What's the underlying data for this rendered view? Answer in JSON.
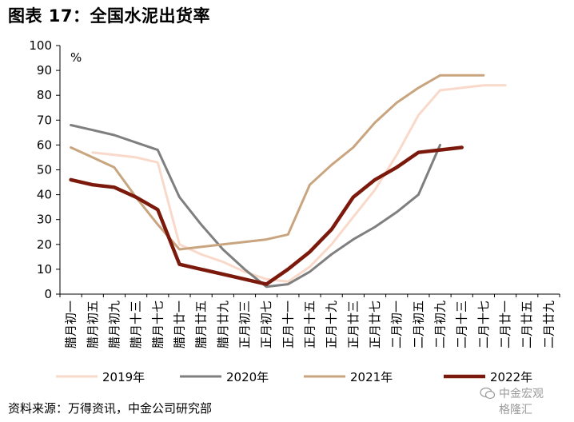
{
  "title": "图表 17：全国水泥出货率",
  "source": "资料来源：万得资讯，中金公司研究部",
  "watermark": {
    "name": "中金宏观",
    "brand": "格隆汇"
  },
  "chart_data": {
    "type": "line",
    "unit": "%",
    "ylim": [
      0,
      100
    ],
    "yticks": [
      0,
      10,
      20,
      30,
      40,
      50,
      60,
      70,
      80,
      90,
      100
    ],
    "categories": [
      "腊月初一",
      "腊月初五",
      "腊月初九",
      "腊月十三",
      "腊月十七",
      "腊月廿一",
      "腊月廿五",
      "腊月廿九",
      "正月初三",
      "正月初七",
      "正月十一",
      "正月十五",
      "正月十九",
      "正月廿三",
      "正月廿七",
      "二月初一",
      "二月初五",
      "二月初九",
      "二月十三",
      "二月十七",
      "二月廿一",
      "二月廿五",
      "二月廿九"
    ],
    "grid": false,
    "legend_position": "bottom",
    "series": [
      {
        "name": "2019年",
        "color": "#f9d9c9",
        "width": 3,
        "values": [
          null,
          57,
          56,
          55,
          53,
          20,
          16,
          13,
          9,
          6,
          5,
          11,
          20,
          31,
          42,
          56,
          72,
          82,
          83,
          84,
          84,
          null,
          null
        ]
      },
      {
        "name": "2020年",
        "color": "#7f7f7f",
        "width": 3,
        "values": [
          68,
          66,
          64,
          61,
          58,
          39,
          28,
          18,
          10,
          3,
          4,
          9,
          16,
          22,
          27,
          33,
          40,
          60,
          null,
          null,
          null,
          null,
          null
        ]
      },
      {
        "name": "2021年",
        "color": "#c9a57f",
        "width": 3,
        "values": [
          59,
          55,
          51,
          39,
          28,
          18,
          19,
          20,
          21,
          22,
          24,
          44,
          52,
          59,
          69,
          77,
          83,
          88,
          88,
          88,
          null,
          null,
          null
        ]
      },
      {
        "name": "2022年",
        "color": "#7b1a0c",
        "width": 4.5,
        "values": [
          46,
          44,
          43,
          39,
          34,
          12,
          10,
          8,
          6,
          4,
          10,
          17,
          26,
          39,
          46,
          51,
          57,
          58,
          59,
          null,
          null,
          null,
          null
        ]
      }
    ]
  }
}
